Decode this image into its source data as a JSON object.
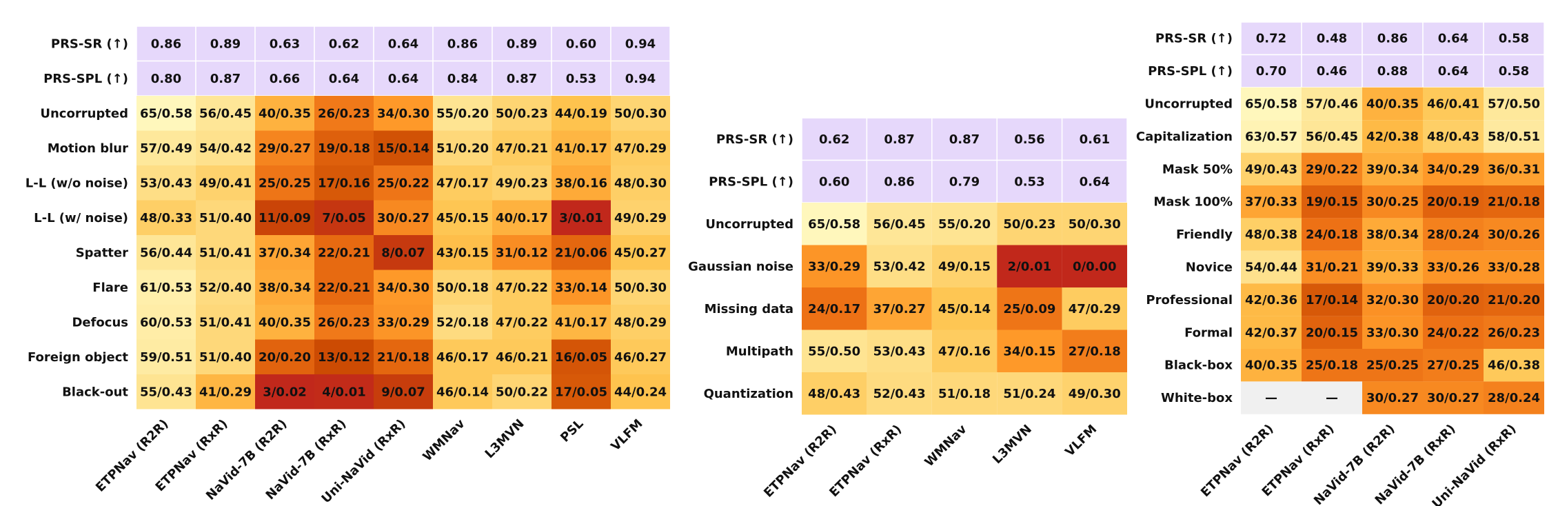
{
  "chart_data": [
    {
      "type": "heatmap",
      "title": "",
      "metric_rows": [
        "PRS-SR (↑)",
        "PRS-SPL (↑)"
      ],
      "rows": [
        "Uncorrupted",
        "Motion blur",
        "L-L (w/o noise)",
        "L-L (w/ noise)",
        "Spatter",
        "Flare",
        "Defocus",
        "Foreign object",
        "Black-out"
      ],
      "columns": [
        "ETPNav (R2R)",
        "ETPNav (RxR)",
        "NaVid-7B (R2R)",
        "NaVid-7B (RxR)",
        "Uni-NaVid (RxR)",
        "WMNav",
        "L3MVN",
        "PSL",
        "VLFM"
      ],
      "metric_values": [
        [
          "0.86",
          "0.89",
          "0.63",
          "0.62",
          "0.64",
          "0.86",
          "0.89",
          "0.60",
          "0.94"
        ],
        [
          "0.80",
          "0.87",
          "0.66",
          "0.64",
          "0.64",
          "0.84",
          "0.87",
          "0.53",
          "0.94"
        ]
      ],
      "values": [
        [
          "65/0.58",
          "56/0.45",
          "40/0.35",
          "26/0.23",
          "34/0.30",
          "55/0.20",
          "50/0.23",
          "44/0.19",
          "50/0.30"
        ],
        [
          "57/0.49",
          "54/0.42",
          "29/0.27",
          "19/0.18",
          "15/0.14",
          "51/0.20",
          "47/0.21",
          "41/0.17",
          "47/0.29"
        ],
        [
          "53/0.43",
          "49/0.41",
          "25/0.25",
          "17/0.16",
          "25/0.22",
          "47/0.17",
          "49/0.23",
          "38/0.16",
          "48/0.30"
        ],
        [
          "48/0.33",
          "51/0.40",
          "11/0.09",
          "7/0.05",
          "30/0.27",
          "45/0.15",
          "40/0.17",
          "3/0.01",
          "49/0.29"
        ],
        [
          "56/0.44",
          "51/0.41",
          "37/0.34",
          "22/0.21",
          "8/0.07",
          "43/0.15",
          "31/0.12",
          "21/0.06",
          "45/0.27"
        ],
        [
          "61/0.53",
          "52/0.40",
          "38/0.34",
          "22/0.21",
          "34/0.30",
          "50/0.18",
          "47/0.22",
          "33/0.14",
          "50/0.30"
        ],
        [
          "60/0.53",
          "51/0.41",
          "40/0.35",
          "26/0.23",
          "33/0.29",
          "52/0.18",
          "47/0.22",
          "41/0.17",
          "48/0.29"
        ],
        [
          "59/0.51",
          "51/0.40",
          "20/0.20",
          "13/0.12",
          "21/0.18",
          "46/0.17",
          "46/0.21",
          "16/0.05",
          "46/0.27"
        ],
        [
          "55/0.43",
          "41/0.29",
          "3/0.02",
          "4/0.01",
          "9/0.07",
          "46/0.14",
          "50/0.22",
          "17/0.05",
          "44/0.24"
        ]
      ]
    },
    {
      "type": "heatmap",
      "title": "",
      "metric_rows": [
        "PRS-SR (↑)",
        "PRS-SPL (↑)"
      ],
      "rows": [
        "Uncorrupted",
        "Gaussian noise",
        "Missing data",
        "Multipath",
        "Quantization"
      ],
      "columns": [
        "ETPNav (R2R)",
        "ETPNav (RxR)",
        "WMNav",
        "L3MVN",
        "VLFM"
      ],
      "metric_values": [
        [
          "0.62",
          "0.87",
          "0.87",
          "0.56",
          "0.61"
        ],
        [
          "0.60",
          "0.86",
          "0.79",
          "0.53",
          "0.64"
        ]
      ],
      "values": [
        [
          "65/0.58",
          "56/0.45",
          "55/0.20",
          "50/0.23",
          "50/0.30"
        ],
        [
          "33/0.29",
          "53/0.42",
          "49/0.15",
          "2/0.01",
          "0/0.00"
        ],
        [
          "24/0.17",
          "37/0.27",
          "45/0.14",
          "25/0.09",
          "47/0.29"
        ],
        [
          "55/0.50",
          "53/0.43",
          "47/0.16",
          "34/0.15",
          "27/0.18"
        ],
        [
          "48/0.43",
          "52/0.43",
          "51/0.18",
          "51/0.24",
          "49/0.30"
        ]
      ]
    },
    {
      "type": "heatmap",
      "title": "",
      "metric_rows": [
        "PRS-SR (↑)",
        "PRS-SPL (↑)"
      ],
      "rows": [
        "Uncorrupted",
        "Capitalization",
        "Mask 50%",
        "Mask 100%",
        "Friendly",
        "Novice",
        "Professional",
        "Formal",
        "Black-box",
        "White-box"
      ],
      "columns": [
        "ETPNav (R2R)",
        "ETPNav (RxR)",
        "NaVid-7B (R2R)",
        "NaVid-7B (RxR)",
        "Uni-NaVid (RxR)"
      ],
      "metric_values": [
        [
          "0.72",
          "0.48",
          "0.86",
          "0.64",
          "0.58"
        ],
        [
          "0.70",
          "0.46",
          "0.88",
          "0.64",
          "0.58"
        ]
      ],
      "values": [
        [
          "65/0.58",
          "57/0.46",
          "40/0.35",
          "46/0.41",
          "57/0.50"
        ],
        [
          "63/0.57",
          "56/0.45",
          "42/0.38",
          "48/0.43",
          "58/0.51"
        ],
        [
          "49/0.43",
          "29/0.22",
          "39/0.34",
          "34/0.29",
          "36/0.31"
        ],
        [
          "37/0.33",
          "19/0.15",
          "30/0.25",
          "20/0.19",
          "21/0.18"
        ],
        [
          "48/0.38",
          "24/0.18",
          "38/0.34",
          "28/0.24",
          "30/0.26"
        ],
        [
          "54/0.44",
          "31/0.21",
          "39/0.33",
          "33/0.26",
          "33/0.28"
        ],
        [
          "42/0.36",
          "17/0.14",
          "32/0.30",
          "20/0.20",
          "21/0.20"
        ],
        [
          "42/0.37",
          "20/0.15",
          "33/0.30",
          "24/0.22",
          "26/0.23"
        ],
        [
          "40/0.35",
          "25/0.18",
          "25/0.25",
          "27/0.25",
          "46/0.38"
        ],
        [
          "—",
          "—",
          "30/0.27",
          "30/0.27",
          "28/0.24"
        ]
      ]
    }
  ],
  "colors": {
    "metric_fill": "#e6d8fb",
    "missing_fill": "#f0f0f0",
    "scale": [
      "#fff7bc",
      "#fee391",
      "#fec44f",
      "#fe9929",
      "#ec7014",
      "#cc4c02",
      "#c1281b"
    ]
  }
}
